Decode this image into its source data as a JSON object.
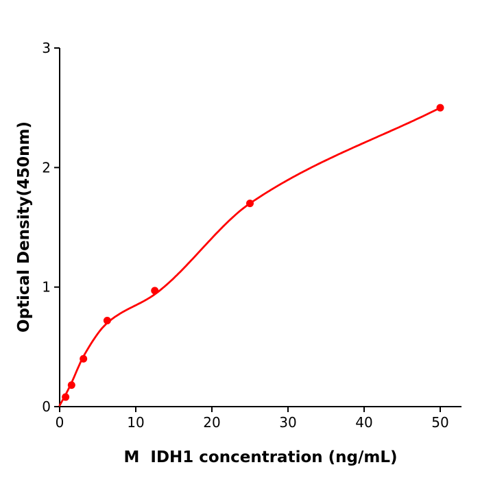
{
  "chart_data": {
    "type": "scatter",
    "subtype": "standard-curve-with-fitted-line",
    "title": "",
    "xlabel": "M  IDH1 concentration (ng/mL)",
    "ylabel": "Optical Density(450nm)",
    "x": [
      0.78,
      1.56,
      3.125,
      6.25,
      12.5,
      25,
      50
    ],
    "y": [
      0.08,
      0.18,
      0.4,
      0.72,
      0.97,
      1.7,
      2.5
    ],
    "fit_curve": [
      [
        0,
        0.01
      ],
      [
        0.78,
        0.1
      ],
      [
        1.56,
        0.2
      ],
      [
        3.125,
        0.42
      ],
      [
        6.25,
        0.7
      ],
      [
        12.5,
        0.94
      ],
      [
        25,
        1.7
      ],
      [
        50,
        2.5
      ]
    ],
    "xlim": [
      0,
      52.8
    ],
    "ylim": [
      0,
      3
    ],
    "xticks": [
      0,
      10,
      20,
      30,
      40,
      50
    ],
    "yticks": [
      0,
      1,
      2,
      3
    ],
    "grid": false,
    "marker_color": "#ff0000",
    "line_color": "#ff0000",
    "axis_color": "#000000",
    "background": "#ffffff"
  }
}
